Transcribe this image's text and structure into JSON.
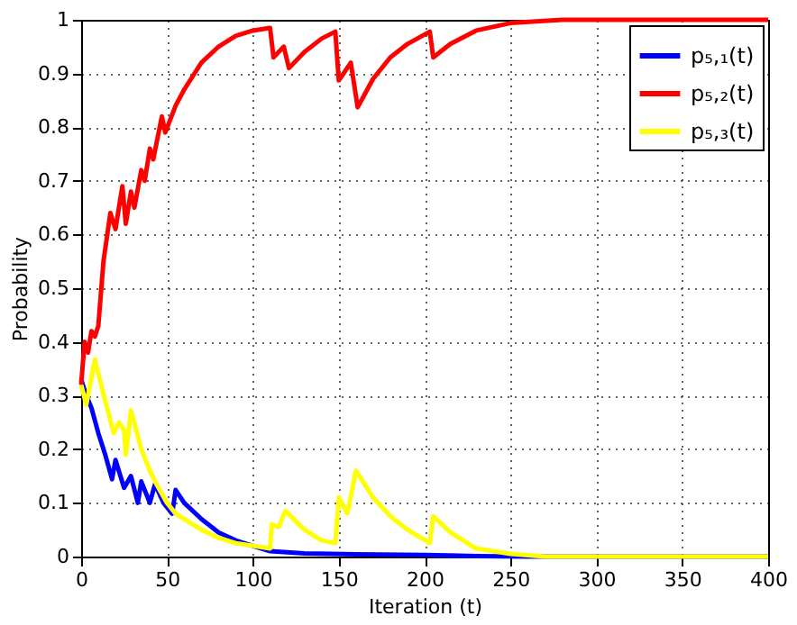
{
  "chart_data": {
    "type": "line",
    "xlabel": "Iteration (t)",
    "ylabel": "Probability",
    "xlim": [
      0,
      400
    ],
    "xticks": [
      0,
      50,
      100,
      150,
      200,
      250,
      300,
      350,
      400
    ],
    "ylim": [
      0,
      1
    ],
    "yticks": [
      0,
      0.1,
      0.2,
      0.3,
      0.4,
      0.5,
      0.6,
      0.7,
      0.8,
      0.9,
      1
    ],
    "grid": true,
    "legend": "top right",
    "line_style": "solid",
    "marker": "none",
    "series": [
      {
        "name": "p₅,₁(t)",
        "color": "#0000ff",
        "x": [
          0,
          3,
          6,
          10,
          14,
          18,
          20,
          25,
          29,
          33,
          35,
          40,
          43,
          48,
          53,
          55,
          60,
          70,
          80,
          90,
          100,
          110,
          130,
          160,
          200,
          230,
          260,
          300,
          400
        ],
        "values": [
          0.33,
          0.3,
          0.277,
          0.23,
          0.19,
          0.144,
          0.18,
          0.128,
          0.15,
          0.1,
          0.14,
          0.1,
          0.135,
          0.1,
          0.08,
          0.124,
          0.1,
          0.07,
          0.045,
          0.03,
          0.02,
          0.01,
          0.006,
          0.004,
          0.003,
          0.001,
          0,
          0,
          0
        ]
      },
      {
        "name": "p₅,₂(t)",
        "color": "#ff0000",
        "x": [
          0,
          2,
          4,
          6,
          8,
          10,
          13,
          17,
          20,
          24,
          26,
          29,
          31,
          35,
          37,
          40,
          42,
          47,
          49,
          55,
          60,
          70,
          80,
          90,
          100,
          110,
          112,
          118,
          121,
          130,
          140,
          148,
          150,
          157,
          161,
          170,
          180,
          190,
          203,
          205,
          215,
          230,
          250,
          280,
          400
        ],
        "values": [
          0.32,
          0.4,
          0.38,
          0.42,
          0.41,
          0.43,
          0.55,
          0.64,
          0.61,
          0.69,
          0.62,
          0.68,
          0.65,
          0.72,
          0.7,
          0.76,
          0.74,
          0.82,
          0.79,
          0.84,
          0.87,
          0.92,
          0.95,
          0.97,
          0.98,
          0.985,
          0.93,
          0.95,
          0.91,
          0.94,
          0.965,
          0.978,
          0.887,
          0.92,
          0.837,
          0.89,
          0.93,
          0.955,
          0.978,
          0.93,
          0.955,
          0.98,
          0.994,
          1,
          1
        ]
      },
      {
        "name": "p₅,₃(t)",
        "color": "#ffff00",
        "x": [
          0,
          3,
          8,
          14,
          19,
          22,
          25,
          26,
          29,
          35,
          40,
          44,
          50,
          55,
          60,
          70,
          80,
          90,
          100,
          110,
          111,
          115,
          119,
          130,
          140,
          148,
          150,
          155,
          160,
          170,
          180,
          190,
          203,
          205,
          215,
          230,
          250,
          270,
          400
        ],
        "values": [
          0.32,
          0.283,
          0.367,
          0.29,
          0.23,
          0.25,
          0.235,
          0.19,
          0.272,
          0.2,
          0.16,
          0.134,
          0.1,
          0.08,
          0.07,
          0.05,
          0.035,
          0.025,
          0.02,
          0.015,
          0.06,
          0.055,
          0.085,
          0.05,
          0.03,
          0.025,
          0.11,
          0.08,
          0.16,
          0.11,
          0.075,
          0.05,
          0.025,
          0.075,
          0.045,
          0.015,
          0.005,
          0,
          0
        ]
      }
    ]
  }
}
